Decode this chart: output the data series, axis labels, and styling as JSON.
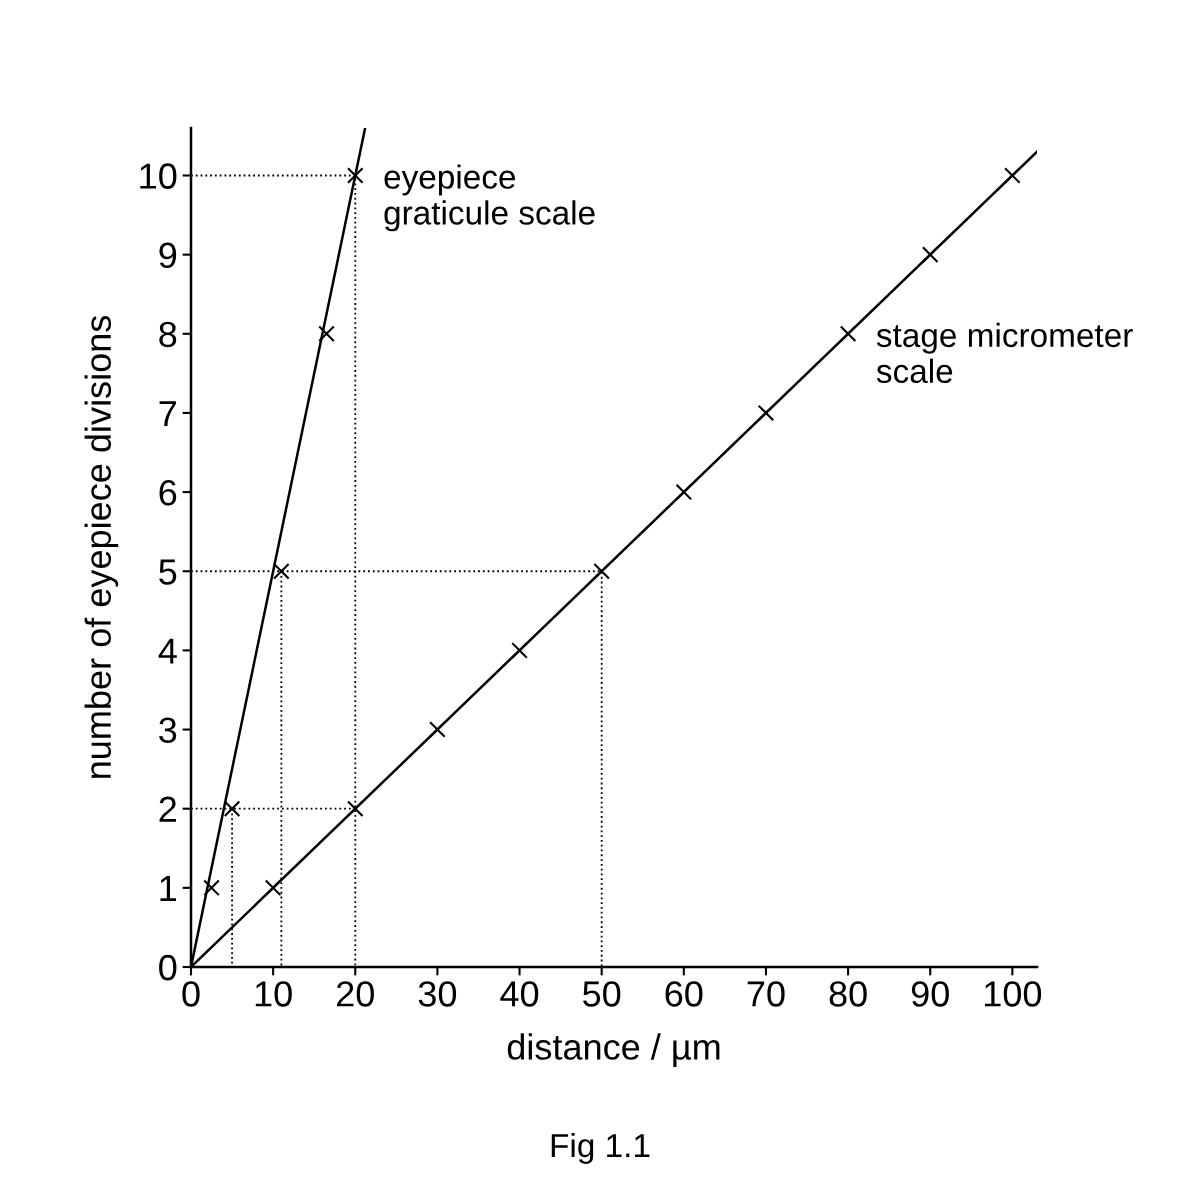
{
  "chart_data": {
    "type": "scatter",
    "xlabel": "distance / µm",
    "ylabel": "number of eyepiece divisions",
    "xlim": [
      0,
      103
    ],
    "ylim": [
      0,
      10.6
    ],
    "xticks": [
      0,
      10,
      20,
      30,
      40,
      50,
      60,
      70,
      80,
      90,
      100
    ],
    "yticks": [
      0,
      1,
      2,
      3,
      4,
      5,
      6,
      7,
      8,
      9,
      10
    ],
    "grid": false,
    "legend": false,
    "series": [
      {
        "type": "line",
        "color": "#000000",
        "line_style": "solid",
        "marker": "none",
        "x": [
          0,
          21.2
        ],
        "values": [
          0,
          10.6
        ]
      },
      {
        "type": "line",
        "color": "#000000",
        "line_style": "solid",
        "marker": "none",
        "x": [
          0,
          103
        ],
        "values": [
          0,
          10.3
        ]
      },
      {
        "color": "#000000",
        "marker": "cross",
        "x": [
          2.5,
          5,
          11,
          16.5,
          20
        ],
        "values": [
          1,
          2,
          5,
          8,
          10
        ]
      },
      {
        "color": "#000000",
        "marker": "cross",
        "x": [
          10,
          20,
          30,
          40,
          50,
          60,
          70,
          80,
          90,
          100
        ],
        "values": [
          1,
          2,
          3,
          4,
          5,
          6,
          7,
          8,
          9,
          10
        ]
      },
      {
        "type": "line",
        "color": "#000000",
        "line_style": "dotted",
        "marker": "none",
        "x": [
          0,
          20,
          20
        ],
        "values": [
          10,
          10,
          0
        ]
      },
      {
        "type": "line",
        "color": "#000000",
        "line_style": "dotted",
        "marker": "none",
        "x": [
          0,
          50,
          50
        ],
        "values": [
          5,
          5,
          0
        ]
      },
      {
        "type": "line",
        "color": "#000000",
        "line_style": "dotted",
        "marker": "none",
        "x": [
          11,
          11
        ],
        "values": [
          5,
          0
        ]
      },
      {
        "type": "line",
        "color": "#000000",
        "line_style": "dotted",
        "marker": "none",
        "x": [
          0,
          20
        ],
        "values": [
          2,
          2
        ]
      },
      {
        "type": "line",
        "color": "#000000",
        "line_style": "dotted",
        "marker": "none",
        "x": [
          5,
          5
        ],
        "values": [
          2,
          0
        ]
      }
    ],
    "annotations": [
      {
        "text": "eyepiece\ngraticule scale",
        "x": 20,
        "y": 10
      },
      {
        "text": "stage micrometer\nscale",
        "x": 80,
        "y": 8
      },
      "Fig 1.1"
    ]
  }
}
